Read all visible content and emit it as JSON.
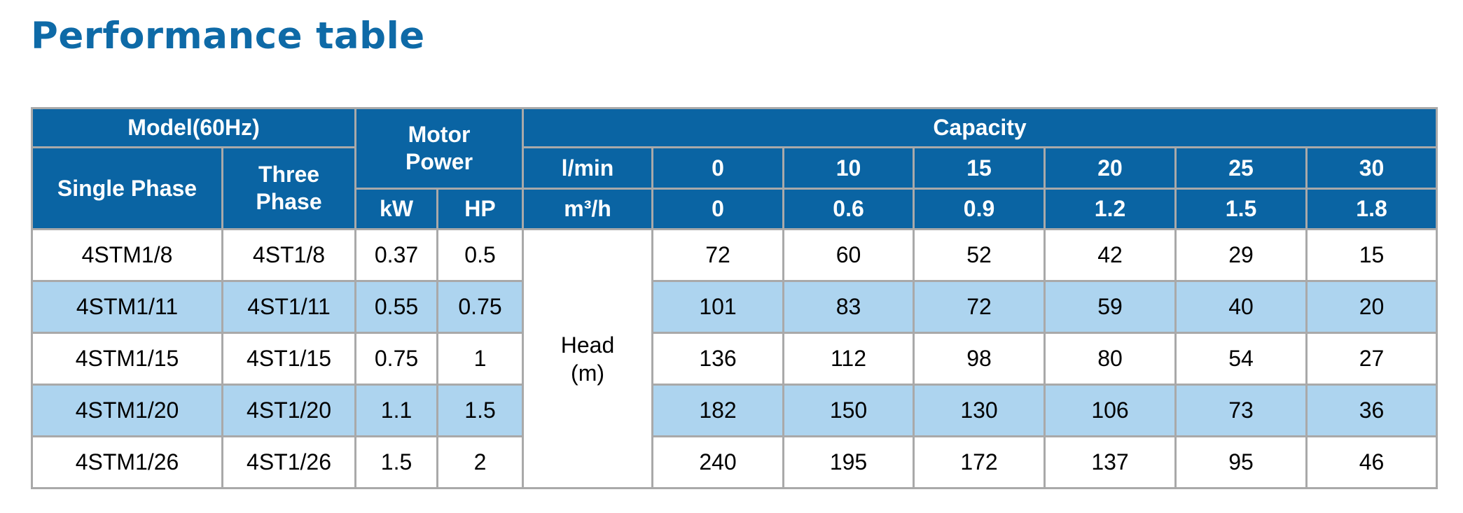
{
  "title": "Performance table",
  "headers": {
    "model": "Model(60Hz)",
    "single_phase": "Single Phase",
    "three_phase": "Three Phase",
    "motor_power": "Motor Power",
    "kw": "kW",
    "hp": "HP",
    "capacity": "Capacity",
    "lmin_label": "l/min",
    "m3h_label": "m³/h",
    "lmin": [
      "0",
      "10",
      "15",
      "20",
      "25",
      "30"
    ],
    "m3h": [
      "0",
      "0.6",
      "0.9",
      "1.2",
      "1.5",
      "1.8"
    ]
  },
  "head_label": "Head\n(m)",
  "rows": [
    {
      "single": "4STM1/8",
      "three": "4ST1/8",
      "kw": "0.37",
      "hp": "0.5",
      "head": [
        "72",
        "60",
        "52",
        "42",
        "29",
        "15"
      ]
    },
    {
      "single": "4STM1/11",
      "three": "4ST1/11",
      "kw": "0.55",
      "hp": "0.75",
      "head": [
        "101",
        "83",
        "72",
        "59",
        "40",
        "20"
      ]
    },
    {
      "single": "4STM1/15",
      "three": "4ST1/15",
      "kw": "0.75",
      "hp": "1",
      "head": [
        "136",
        "112",
        "98",
        "80",
        "54",
        "27"
      ]
    },
    {
      "single": "4STM1/20",
      "three": "4ST1/20",
      "kw": "1.1",
      "hp": "1.5",
      "head": [
        "182",
        "150",
        "130",
        "106",
        "73",
        "36"
      ]
    },
    {
      "single": "4STM1/26",
      "three": "4ST1/26",
      "kw": "1.5",
      "hp": "2",
      "head": [
        "240",
        "195",
        "172",
        "137",
        "95",
        "46"
      ]
    }
  ],
  "colors": {
    "title": "#0e6aa7",
    "header_bg": "#0a64a3",
    "header_text": "#ffffff",
    "stripe": "#add4ef",
    "border": "#a9a9a9"
  }
}
